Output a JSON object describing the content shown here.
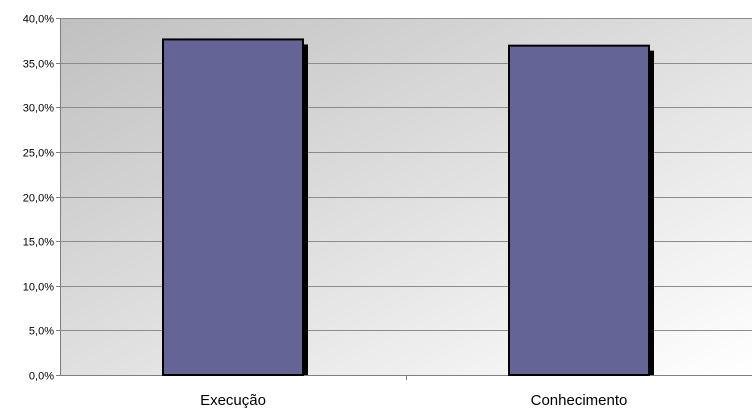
{
  "chart_data": {
    "type": "bar",
    "title": "",
    "xlabel": "",
    "ylabel": "",
    "categories": [
      "Execução",
      "Conhecimento"
    ],
    "values": [
      37.6,
      36.9
    ],
    "ylim": [
      0,
      40
    ],
    "yticks": [
      0,
      5,
      10,
      15,
      20,
      25,
      30,
      35,
      40
    ],
    "ytick_labels": [
      "0,0%",
      "5,0%",
      "10,0%",
      "15,0%",
      "20,0%",
      "25,0%",
      "30,0%",
      "35,0%",
      "40,0%"
    ],
    "grid": true,
    "legend": "none",
    "colors": {
      "bar": "#646496",
      "bar_outline": "#000000",
      "bar_shadow": "#000000",
      "plot_bg_dark": "#c0c0c0",
      "plot_bg_light": "#ffffff",
      "gridline": "#8c8c8c",
      "axis": "#7f7f7f"
    }
  }
}
